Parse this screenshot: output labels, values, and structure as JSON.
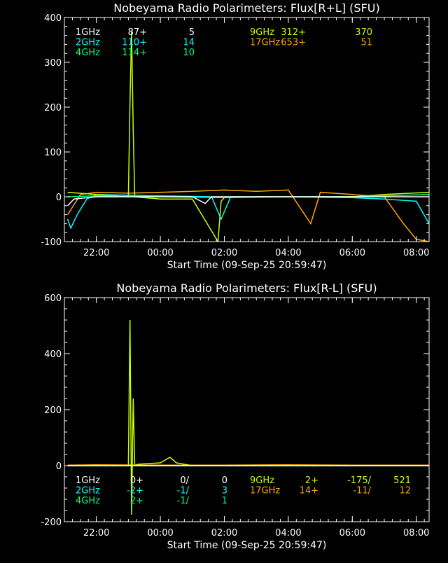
{
  "colors": {
    "background": "#000000",
    "axes": "#ffffff",
    "1GHz": "#ffffff",
    "2GHz": "#00ffff",
    "4GHz": "#00ff80",
    "9GHz": "#c8ff00",
    "17GHz": "#ffa500"
  },
  "chart_data": [
    {
      "type": "line",
      "title": "Nobeyama Radio Polarimeters: Flux[R+L] (SFU)",
      "xlabel": "Start Time (09-Sep-25 20:59:47)",
      "x_tick_labels": [
        "22:00",
        "00:00",
        "02:00",
        "04:00",
        "06:00",
        "08:00"
      ],
      "x_ticks_hours": [
        22,
        24,
        26,
        28,
        30,
        32
      ],
      "xlim_hours": [
        21.0,
        32.4
      ],
      "ylim": [
        -100,
        400
      ],
      "y_tick_labels": [
        "-100",
        "0",
        "100",
        "200",
        "300",
        "400"
      ],
      "y_ticks": [
        -100,
        0,
        100,
        200,
        300,
        400
      ],
      "legend_rows": [
        [
          {
            "band": "1GHz",
            "text": "1GHz",
            "v1": "87+",
            "v2": "5"
          },
          {
            "band": "9GHz",
            "text": "9GHz",
            "v1": "312+",
            "v2": "370"
          }
        ],
        [
          {
            "band": "2GHz",
            "text": "2GHz",
            "v1": "110+",
            "v2": "14"
          },
          {
            "band": "17GHz",
            "text": "17GHz",
            "v1": "653+",
            "v2": "51"
          }
        ],
        [
          {
            "band": "4GHz",
            "text": "4GHz",
            "v1": "114+",
            "v2": "10"
          }
        ]
      ],
      "series": [
        {
          "name": "17GHz",
          "x": [
            21.1,
            21.5,
            22.0,
            23.0,
            24.0,
            25.0,
            26.0,
            27.0,
            28.0,
            28.7,
            29.0,
            30.0,
            31.0,
            31.6,
            32.0,
            32.4
          ],
          "y": [
            -40,
            5,
            10,
            8,
            10,
            12,
            15,
            12,
            15,
            -60,
            10,
            5,
            0,
            -60,
            -95,
            -100
          ]
        },
        {
          "name": "2GHz",
          "x": [
            21.1,
            21.2,
            21.4,
            21.7,
            22.0,
            24.0,
            25.6,
            25.9,
            26.2,
            28.0,
            30.0,
            31.0,
            32.0,
            32.4
          ],
          "y": [
            -50,
            -70,
            -40,
            -5,
            5,
            2,
            0,
            -50,
            0,
            0,
            -2,
            -5,
            -10,
            -60
          ]
        },
        {
          "name": "9GHz",
          "x": [
            21.1,
            22.0,
            23.0,
            23.05,
            23.1,
            23.15,
            23.2,
            24.0,
            25.0,
            25.8,
            25.9,
            26.0,
            27.0,
            28.0,
            30.0,
            31.0,
            32.4
          ],
          "y": [
            10,
            5,
            0,
            210,
            370,
            150,
            0,
            -5,
            -5,
            -100,
            -10,
            -2,
            0,
            0,
            0,
            5,
            10
          ]
        },
        {
          "name": "4GHz",
          "x": [
            21.1,
            22.0,
            24.0,
            26.0,
            28.0,
            30.0,
            32.4
          ],
          "y": [
            0,
            2,
            0,
            -2,
            0,
            0,
            5
          ]
        },
        {
          "name": "1GHz",
          "x": [
            21.1,
            21.3,
            22.0,
            24.0,
            25.0,
            25.4,
            25.6,
            26.0,
            28.0,
            30.0,
            32.4
          ],
          "y": [
            -20,
            -5,
            0,
            0,
            0,
            -15,
            0,
            0,
            0,
            0,
            0
          ]
        }
      ]
    },
    {
      "type": "line",
      "title": "Nobeyama Radio Polarimeters: Flux[R-L] (SFU)",
      "xlabel": "Start Time (09-Sep-25 20:59:47)",
      "x_tick_labels": [
        "22:00",
        "00:00",
        "02:00",
        "04:00",
        "06:00",
        "08:00"
      ],
      "x_ticks_hours": [
        22,
        24,
        26,
        28,
        30,
        32
      ],
      "xlim_hours": [
        21.0,
        32.4
      ],
      "ylim": [
        -200,
        600
      ],
      "y_tick_labels": [
        "-200",
        "0",
        "200",
        "400",
        "600"
      ],
      "y_ticks": [
        -200,
        0,
        200,
        400,
        600
      ],
      "legend_rows": [
        [
          {
            "band": "1GHz",
            "text": "1GHz",
            "v1": "0+",
            "v2": "0/",
            "v3": "0"
          },
          {
            "band": "9GHz",
            "text": "9GHz",
            "v1": "2+",
            "v2": "-175/",
            "v3": "521"
          }
        ],
        [
          {
            "band": "2GHz",
            "text": "2GHz",
            "v1": "-2+",
            "v2": "-1/",
            "v3": "3"
          },
          {
            "band": "17GHz",
            "text": "17GHz",
            "v1": "14+",
            "v2": "-11/",
            "v3": "12"
          }
        ],
        [
          {
            "band": "4GHz",
            "text": "4GHz",
            "v1": "2+",
            "v2": "-1/",
            "v3": "1"
          }
        ]
      ],
      "series": [
        {
          "name": "17GHz",
          "x": [
            21.1,
            22.0,
            24.0,
            26.0,
            28.0,
            30.0,
            32.4
          ],
          "y": [
            2,
            3,
            2,
            2,
            3,
            2,
            2
          ]
        },
        {
          "name": "9GHz",
          "x": [
            21.1,
            22.0,
            23.0,
            23.05,
            23.1,
            23.15,
            23.2,
            23.3,
            24.0,
            24.3,
            24.5,
            25.0,
            26.0,
            28.0,
            30.0,
            32.4
          ],
          "y": [
            0,
            0,
            0,
            520,
            -175,
            240,
            0,
            5,
            10,
            30,
            10,
            0,
            0,
            0,
            0,
            0
          ]
        },
        {
          "name": "2GHz",
          "x": [
            21.1,
            24.0,
            28.0,
            32.4
          ],
          "y": [
            0,
            0,
            0,
            0
          ]
        },
        {
          "name": "4GHz",
          "x": [
            21.1,
            24.0,
            28.0,
            32.4
          ],
          "y": [
            0,
            0,
            0,
            0
          ]
        },
        {
          "name": "1GHz",
          "x": [
            21.1,
            24.0,
            28.0,
            32.4
          ],
          "y": [
            0,
            0,
            0,
            0
          ]
        }
      ]
    }
  ]
}
